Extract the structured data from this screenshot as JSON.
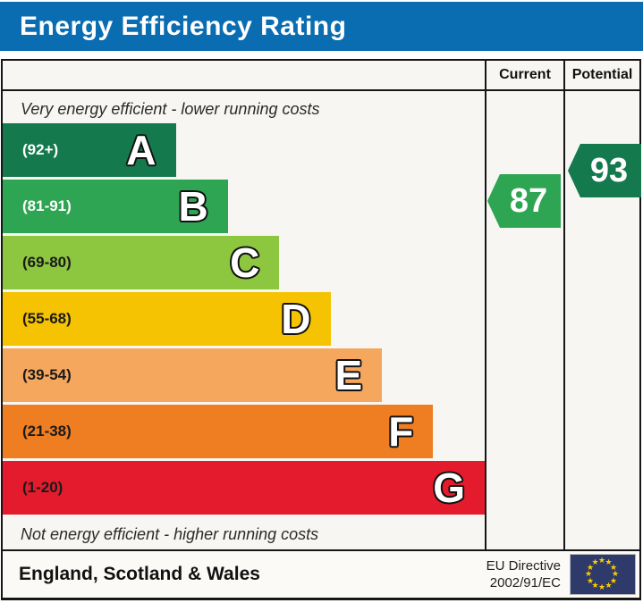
{
  "title": "Energy Efficiency Rating",
  "title_bar_color": "#0a6cb1",
  "columns": {
    "current": "Current",
    "potential": "Potential"
  },
  "top_note": "Very energy efficient - lower running costs",
  "bottom_note": "Not energy efficient - higher running costs",
  "chart_data": {
    "type": "bar",
    "title": "Energy Efficiency Rating",
    "bands": [
      {
        "letter": "A",
        "range": "(92+)",
        "color": "#147a4d",
        "label_color": "#ffffff",
        "width_pct": 35.9
      },
      {
        "letter": "B",
        "range": "(81-91)",
        "color": "#2ea552",
        "label_color": "#ffffff",
        "width_pct": 46.7
      },
      {
        "letter": "C",
        "range": "(69-80)",
        "color": "#8dc63f",
        "label_color": "#1a1a1a",
        "width_pct": 57.4
      },
      {
        "letter": "D",
        "range": "(55-68)",
        "color": "#f5c301",
        "label_color": "#1a1a1a",
        "width_pct": 68.0
      },
      {
        "letter": "E",
        "range": "(39-54)",
        "color": "#f4a75d",
        "label_color": "#1a1a1a",
        "width_pct": 78.7
      },
      {
        "letter": "F",
        "range": "(21-38)",
        "color": "#ef7d22",
        "label_color": "#1a1a1a",
        "width_pct": 89.3
      },
      {
        "letter": "G",
        "range": "(1-20)",
        "color": "#e41b2d",
        "label_color": "#1a1a1a",
        "width_pct": 100
      }
    ],
    "current": {
      "value": 87,
      "band": "B",
      "color": "#2ea552"
    },
    "potential": {
      "value": 93,
      "band": "A",
      "color": "#147a4d"
    }
  },
  "footer": {
    "region": "England, Scotland & Wales",
    "directive_line1": "EU Directive",
    "directive_line2": "2002/91/EC",
    "flag": {
      "name": "eu-flag",
      "background": "#2e3a69",
      "star_color": "#ffcc00",
      "star_count": 12
    }
  }
}
